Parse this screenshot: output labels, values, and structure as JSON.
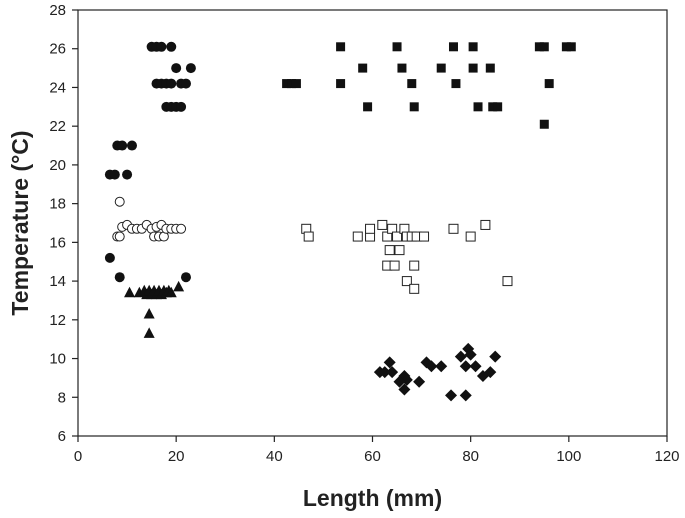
{
  "chart_data": {
    "type": "scatter",
    "title": "",
    "xlabel": "Length (mm)",
    "ylabel": "Temperature (°C)",
    "xlim": [
      0,
      120
    ],
    "ylim": [
      6,
      28
    ],
    "xticks": [
      0,
      20,
      40,
      60,
      80,
      100,
      120
    ],
    "yticks": [
      6,
      8,
      10,
      12,
      14,
      16,
      18,
      20,
      22,
      24,
      26,
      28
    ],
    "grid": false,
    "legend": "none",
    "series": [
      {
        "marker": "circle-filled",
        "points": [
          [
            15,
            26.1
          ],
          [
            16,
            26.1
          ],
          [
            17,
            26.1
          ],
          [
            19,
            26.1
          ],
          [
            20,
            25
          ],
          [
            23,
            25
          ],
          [
            16,
            24.2
          ],
          [
            17,
            24.2
          ],
          [
            18,
            24.2
          ],
          [
            19,
            24.2
          ],
          [
            21,
            24.2
          ],
          [
            22,
            24.2
          ],
          [
            18,
            23
          ],
          [
            19,
            23
          ],
          [
            20,
            23
          ],
          [
            21,
            23
          ],
          [
            8,
            21
          ],
          [
            9,
            21
          ],
          [
            11,
            21
          ],
          [
            6.5,
            19.5
          ],
          [
            7.5,
            19.5
          ],
          [
            10,
            19.5
          ],
          [
            6.5,
            15.2
          ],
          [
            8.5,
            14.2
          ],
          [
            22,
            14.2
          ]
        ]
      },
      {
        "marker": "circle-open",
        "points": [
          [
            8.5,
            18.1
          ],
          [
            8,
            16.3
          ],
          [
            8.5,
            16.3
          ],
          [
            9,
            16.8
          ],
          [
            10,
            16.9
          ],
          [
            11,
            16.7
          ],
          [
            12,
            16.7
          ],
          [
            13,
            16.7
          ],
          [
            14,
            16.9
          ],
          [
            15,
            16.7
          ],
          [
            15.5,
            16.3
          ],
          [
            16,
            16.8
          ],
          [
            16.5,
            16.3
          ],
          [
            17,
            16.9
          ],
          [
            17.5,
            16.3
          ],
          [
            18,
            16.7
          ],
          [
            19,
            16.7
          ],
          [
            20,
            16.7
          ],
          [
            21,
            16.7
          ]
        ]
      },
      {
        "marker": "triangle-filled",
        "points": [
          [
            10.5,
            13.4
          ],
          [
            12.5,
            13.4
          ],
          [
            13.5,
            13.5
          ],
          [
            14,
            13.3
          ],
          [
            14.5,
            13.5
          ],
          [
            15,
            13.3
          ],
          [
            15.5,
            13.5
          ],
          [
            16,
            13.3
          ],
          [
            16.5,
            13.5
          ],
          [
            17,
            13.3
          ],
          [
            17.5,
            13.5
          ],
          [
            18,
            13.4
          ],
          [
            18.5,
            13.5
          ],
          [
            19,
            13.4
          ],
          [
            20.5,
            13.7
          ],
          [
            14.5,
            12.3
          ],
          [
            14.5,
            11.3
          ]
        ]
      },
      {
        "marker": "square-filled",
        "points": [
          [
            53.5,
            26.1
          ],
          [
            65,
            26.1
          ],
          [
            76.5,
            26.1
          ],
          [
            80.5,
            26.1
          ],
          [
            94,
            26.1
          ],
          [
            95,
            26.1
          ],
          [
            99.5,
            26.1
          ],
          [
            100.5,
            26.1
          ],
          [
            58,
            25
          ],
          [
            66,
            25
          ],
          [
            74,
            25
          ],
          [
            80.5,
            25
          ],
          [
            84,
            25
          ],
          [
            42.5,
            24.2
          ],
          [
            43.5,
            24.2
          ],
          [
            44.5,
            24.2
          ],
          [
            53.5,
            24.2
          ],
          [
            68,
            24.2
          ],
          [
            77,
            24.2
          ],
          [
            96,
            24.2
          ],
          [
            59,
            23
          ],
          [
            68.5,
            23
          ],
          [
            81.5,
            23
          ],
          [
            84.5,
            23
          ],
          [
            85.5,
            23
          ],
          [
            95,
            22.1
          ]
        ]
      },
      {
        "marker": "square-open",
        "points": [
          [
            46.5,
            16.7
          ],
          [
            47,
            16.3
          ],
          [
            57,
            16.3
          ],
          [
            59.5,
            16.3
          ],
          [
            59.5,
            16.7
          ],
          [
            62,
            16.9
          ],
          [
            63,
            16.3
          ],
          [
            64,
            16.7
          ],
          [
            65,
            16.3
          ],
          [
            66.5,
            16.7
          ],
          [
            67,
            16.3
          ],
          [
            68,
            16.3
          ],
          [
            69,
            16.3
          ],
          [
            70.5,
            16.3
          ],
          [
            76.5,
            16.7
          ],
          [
            80,
            16.3
          ],
          [
            83,
            16.9
          ],
          [
            63.5,
            15.6
          ],
          [
            65.5,
            15.6
          ],
          [
            63,
            14.8
          ],
          [
            64.5,
            14.8
          ],
          [
            68.5,
            14.8
          ],
          [
            67,
            14
          ],
          [
            87.5,
            14
          ],
          [
            68.5,
            13.6
          ]
        ]
      },
      {
        "marker": "diamond-filled",
        "points": [
          [
            79.5,
            10.5
          ],
          [
            78,
            10.1
          ],
          [
            80,
            10.2
          ],
          [
            85,
            10.1
          ],
          [
            71,
            9.8
          ],
          [
            63.5,
            9.8
          ],
          [
            72,
            9.6
          ],
          [
            74,
            9.6
          ],
          [
            79,
            9.6
          ],
          [
            81,
            9.6
          ],
          [
            61.5,
            9.3
          ],
          [
            62.5,
            9.3
          ],
          [
            64,
            9.3
          ],
          [
            84,
            9.3
          ],
          [
            82.5,
            9.1
          ],
          [
            66.5,
            9.1
          ],
          [
            67,
            8.9
          ],
          [
            65.5,
            8.8
          ],
          [
            69.5,
            8.8
          ],
          [
            66.5,
            8.4
          ],
          [
            76,
            8.1
          ],
          [
            79,
            8.1
          ]
        ]
      }
    ]
  }
}
